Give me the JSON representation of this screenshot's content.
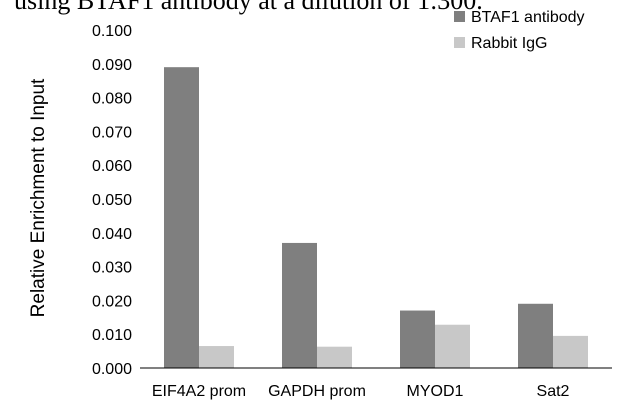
{
  "caption": "using BTAF1 antibody at a dilution of 1:300.",
  "chart_data": {
    "type": "bar",
    "title": "",
    "xlabel": "",
    "ylabel": "Relative Enrichment to Input",
    "ylim": [
      0,
      0.1
    ],
    "ytick_step": 0.01,
    "ytick_decimals": 3,
    "grid": false,
    "legend_position": "top-right",
    "categories": [
      "EIF4A2 prom",
      "GAPDH prom",
      "MYOD1",
      "Sat2"
    ],
    "series": [
      {
        "name": "BTAF1 antibody",
        "color": "#7f7f7f",
        "values": [
          0.089,
          0.037,
          0.017,
          0.019
        ]
      },
      {
        "name": "Rabbit IgG",
        "color": "#c8c8c8",
        "values": [
          0.0065,
          0.0063,
          0.0128,
          0.0095
        ]
      }
    ]
  }
}
